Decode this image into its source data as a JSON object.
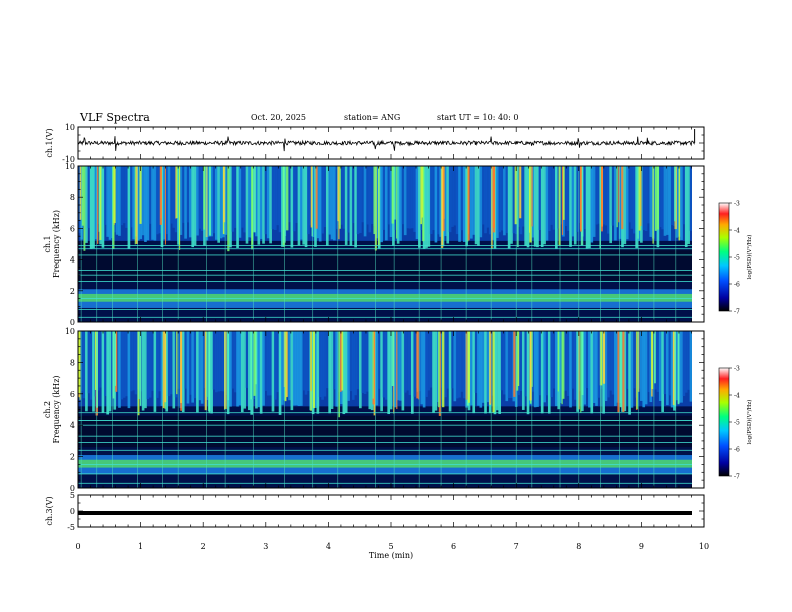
{
  "header": {
    "title": "VLF Spectra",
    "date": "Oct. 20, 2025",
    "station": "station= ANG",
    "start": "start  UT  =    10: 40: 0"
  },
  "chart_data": [
    {
      "type": "line",
      "name": "ch1-waveform",
      "ylabel": "ch.1(V)",
      "ylim": [
        -10,
        10
      ],
      "yticks": [
        "10",
        "-10"
      ],
      "xlim": [
        0,
        10
      ],
      "baseline": 0,
      "noise_amplitude": 1.2,
      "spike_times": [
        0.1,
        0.6,
        1.6,
        2.4,
        3.3,
        4.75,
        5.05,
        6.6,
        7.25,
        8.0,
        8.95,
        9.1,
        9.8
      ]
    },
    {
      "type": "heatmap",
      "name": "ch1-spectrogram",
      "ylabel": "ch.1 Frequency (kHz)",
      "ylabel_channel": "ch.1",
      "ylabel_freq": "Frequency (kHz)",
      "ylim": [
        0,
        10
      ],
      "yticks": [
        "0",
        "2",
        "4",
        "6",
        "8",
        "10"
      ],
      "xlim": [
        0,
        9.85
      ],
      "colorbar": {
        "label": "log(PSD)(V²/Hz)",
        "range": [
          -7,
          -3
        ],
        "ticks": [
          "-3",
          "-4",
          "-5",
          "-6",
          "-7"
        ]
      },
      "bands_khz": [
        0.3,
        0.8,
        1.5,
        2.6,
        3.0,
        3.3,
        4.3,
        4.7,
        4.9
      ],
      "sferic_times": [
        0.05,
        0.3,
        0.55,
        0.95,
        1.35,
        1.6,
        2.05,
        2.35,
        2.8,
        3.3,
        3.75,
        4.15,
        4.75,
        5.05,
        5.45,
        5.8,
        6.2,
        6.6,
        7.0,
        7.25,
        7.7,
        8.0,
        8.35,
        8.65,
        8.95,
        9.2,
        9.55
      ]
    },
    {
      "type": "heatmap",
      "name": "ch2-spectrogram",
      "ylabel": "ch.2 Frequency (kHz)",
      "ylabel_channel": "ch.2",
      "ylabel_freq": "Frequency (kHz)",
      "ylim": [
        0,
        10
      ],
      "yticks": [
        "0",
        "2",
        "4",
        "6",
        "8",
        "10"
      ],
      "xlim": [
        0,
        9.85
      ],
      "colorbar": {
        "label": "log(PSD)(V²/Hz)",
        "range": [
          -7,
          -3
        ],
        "ticks": [
          "-3",
          "-4",
          "-5",
          "-6",
          "-7"
        ]
      },
      "bands_khz": [
        0.3,
        0.9,
        1.5,
        2.4,
        2.9,
        3.3,
        4.0,
        4.3,
        4.8
      ],
      "sferic_times": [
        0.05,
        0.3,
        0.55,
        0.95,
        1.35,
        1.6,
        2.05,
        2.35,
        2.8,
        3.3,
        3.75,
        4.15,
        4.75,
        5.05,
        5.45,
        5.8,
        6.2,
        6.6,
        7.0,
        7.25,
        7.7,
        8.0,
        8.35,
        8.65,
        8.95,
        9.2,
        9.55
      ]
    },
    {
      "type": "line",
      "name": "ch3-waveform",
      "ylabel": "ch.3(V)",
      "ylim": [
        -5,
        5
      ],
      "yticks": [
        "5",
        "0",
        "-5"
      ],
      "xlim": [
        0,
        10
      ],
      "baseline": 0,
      "noise_amplitude": 0
    }
  ],
  "xaxis": {
    "label": "Time (min)",
    "ticks": [
      "0",
      "1",
      "2",
      "3",
      "4",
      "5",
      "6",
      "7",
      "8",
      "9",
      "10"
    ]
  }
}
